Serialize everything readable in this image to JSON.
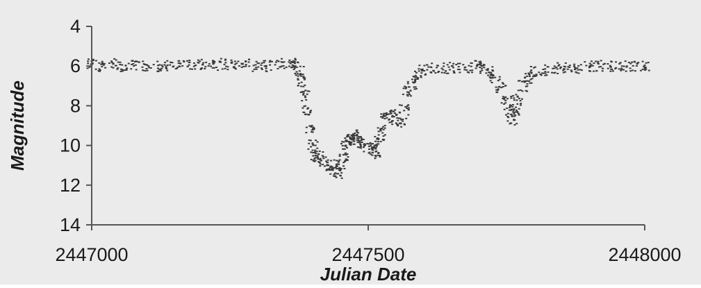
{
  "chart_data": {
    "type": "scatter",
    "title": "",
    "xlabel": "Julian Date",
    "ylabel": "Magnitude",
    "xlim": [
      2447000,
      2448000
    ],
    "ylim": [
      14,
      4
    ],
    "y_inverted": true,
    "grid": false,
    "legend": "none",
    "xticks": [
      2447000,
      2447500,
      2448000
    ],
    "xtick_labels": [
      "2447000",
      "2447500",
      "2448000"
    ],
    "yticks": [
      4,
      6,
      8,
      10,
      12,
      14
    ],
    "ytick_labels": [
      "4",
      "6",
      "8",
      "10",
      "12",
      "14"
    ],
    "marker_color": "#3a3a3a",
    "background_color": "#ebebeb",
    "plot_background_color": "#ebebeb",
    "series": [
      {
        "values": [
          [
            2447000,
            5.9
          ],
          [
            2447020,
            6.0
          ],
          [
            2447040,
            5.9
          ],
          [
            2447060,
            6.0
          ],
          [
            2447080,
            6.0
          ],
          [
            2447100,
            6.0
          ],
          [
            2447120,
            6.0
          ],
          [
            2447140,
            6.0
          ],
          [
            2447160,
            6.0
          ],
          [
            2447180,
            5.9
          ],
          [
            2447200,
            5.9
          ],
          [
            2447220,
            6.0
          ],
          [
            2447240,
            5.9
          ],
          [
            2447260,
            5.9
          ],
          [
            2447280,
            5.9
          ],
          [
            2447300,
            6.0
          ],
          [
            2447320,
            6.0
          ],
          [
            2447340,
            5.9
          ],
          [
            2447360,
            5.9
          ],
          [
            2447370,
            6.0
          ],
          [
            2447375,
            6.3
          ],
          [
            2447380,
            6.8
          ],
          [
            2447385,
            7.5
          ],
          [
            2447390,
            8.2
          ],
          [
            2447395,
            9.2
          ],
          [
            2447400,
            10.0
          ],
          [
            2447405,
            10.5
          ],
          [
            2447410,
            10.6
          ],
          [
            2447420,
            10.8
          ],
          [
            2447430,
            11.0
          ],
          [
            2447440,
            11.2
          ],
          [
            2447445,
            11.4
          ],
          [
            2447450,
            11.0
          ],
          [
            2447455,
            10.6
          ],
          [
            2447460,
            10.0
          ],
          [
            2447465,
            9.8
          ],
          [
            2447470,
            9.7
          ],
          [
            2447475,
            9.5
          ],
          [
            2447480,
            9.6
          ],
          [
            2447490,
            9.9
          ],
          [
            2447500,
            10.1
          ],
          [
            2447510,
            10.2
          ],
          [
            2447515,
            10.4
          ],
          [
            2447520,
            9.8
          ],
          [
            2447525,
            9.2
          ],
          [
            2447530,
            8.6
          ],
          [
            2447540,
            8.4
          ],
          [
            2447550,
            8.7
          ],
          [
            2447560,
            8.9
          ],
          [
            2447565,
            8.2
          ],
          [
            2447570,
            7.3
          ],
          [
            2447580,
            6.9
          ],
          [
            2447590,
            6.5
          ],
          [
            2447600,
            6.2
          ],
          [
            2447620,
            6.1
          ],
          [
            2447640,
            6.1
          ],
          [
            2447660,
            6.1
          ],
          [
            2447680,
            6.1
          ],
          [
            2447700,
            6.0
          ],
          [
            2447710,
            6.1
          ],
          [
            2447720,
            6.3
          ],
          [
            2447730,
            6.6
          ],
          [
            2447740,
            7.1
          ],
          [
            2447750,
            7.8
          ],
          [
            2447755,
            8.3
          ],
          [
            2447760,
            8.7
          ],
          [
            2447765,
            8.3
          ],
          [
            2447770,
            7.7
          ],
          [
            2447780,
            7.0
          ],
          [
            2447790,
            6.6
          ],
          [
            2447800,
            6.3
          ],
          [
            2447820,
            6.2
          ],
          [
            2447840,
            6.1
          ],
          [
            2447860,
            6.1
          ],
          [
            2447880,
            6.1
          ],
          [
            2447900,
            6.0
          ],
          [
            2447920,
            6.0
          ],
          [
            2447940,
            6.0
          ],
          [
            2447960,
            6.0
          ],
          [
            2447980,
            6.0
          ],
          [
            2448000,
            6.0
          ]
        ]
      }
    ]
  }
}
